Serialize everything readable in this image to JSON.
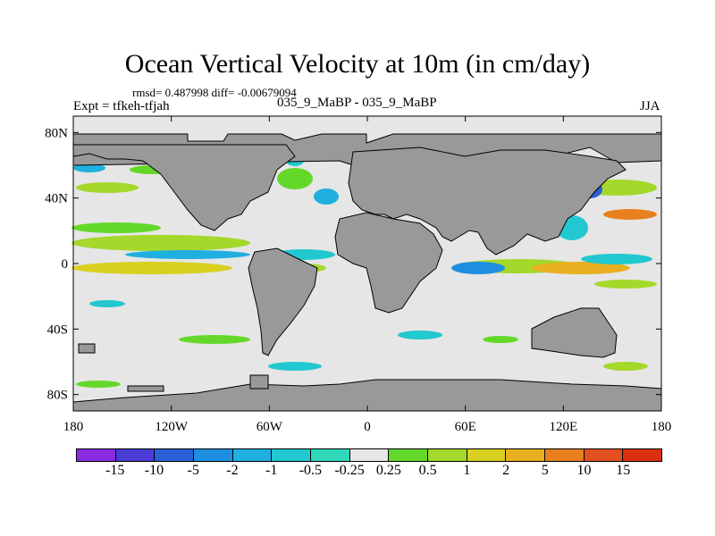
{
  "chart_data": {
    "type": "heatmap",
    "title": "Ocean Vertical Velocity at 10m (in cm/day)",
    "stats_text": "rmsd= 0.487998  diff= -0.00679094",
    "expt_label": "Expt = tfkeh-tfjah",
    "period_label": "035_9_MaBP - 035_9_MaBP",
    "season_label": "JJA",
    "xaxis": {
      "range": [
        -180,
        180
      ],
      "ticks": [
        -180,
        -120,
        -60,
        0,
        60,
        120,
        180
      ],
      "tick_labels": [
        "180",
        "120W",
        "60W",
        "0",
        "60E",
        "120E",
        "180"
      ]
    },
    "yaxis": {
      "range": [
        -90,
        90
      ],
      "ticks": [
        80,
        40,
        0,
        -40,
        -80
      ],
      "tick_labels": [
        "80N",
        "40N",
        "0",
        "40S",
        "80S"
      ]
    },
    "colorbar": {
      "labels": [
        "-15",
        "-10",
        "-5",
        "-2",
        "-1",
        "-0.5",
        "-0.25",
        "0.25",
        "0.5",
        "1",
        "2",
        "5",
        "10",
        "15"
      ],
      "colors": [
        "#8a2be2",
        "#4b3cd6",
        "#2a5fd8",
        "#1e8fe0",
        "#20b0e0",
        "#22c8d0",
        "#2fd8b8",
        "#e6e6e6",
        "#64d82a",
        "#a4d82a",
        "#d8d020",
        "#e8b020",
        "#e88020",
        "#e05020",
        "#d83010"
      ]
    },
    "land_color": "#999999",
    "ocean_color": "#e6e6e6"
  }
}
